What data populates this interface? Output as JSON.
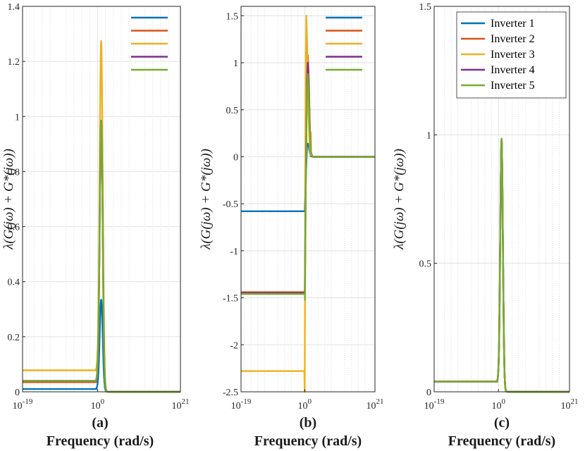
{
  "colors": {
    "inverter_1": "#0072BD",
    "inverter_2": "#D95319",
    "inverter_3": "#EDB120",
    "inverter_4": "#7E2F8E",
    "inverter_5": "#77AC30"
  },
  "chart_data": [
    {
      "type": "line",
      "panel_label": "(a)",
      "xlabel": "Frequency (rad/s)",
      "ylabel": "λ(G(jω) + G*(jω))",
      "xscale": "log",
      "xlim": [
        "1e-19",
        "1e21"
      ],
      "xticks": [
        "10^-19",
        "10^0",
        "10^21"
      ],
      "ylim": [
        0,
        1.4
      ],
      "yticks": [
        "0",
        "0.2",
        "0.4",
        "0.6",
        "0.8",
        "1",
        "1.2",
        "1.4"
      ],
      "grid": true,
      "legend": {
        "placement": "top-right",
        "entries_printed": false
      },
      "series": [
        {
          "color": "#0072BD",
          "low_freq_value": 0.01,
          "peak": {
            "x": "1e1",
            "y": 0.335
          },
          "high_freq_value": 0
        },
        {
          "color": "#D95319",
          "low_freq_value": 0.035,
          "peak": {
            "x": "1e1",
            "y": 0.985
          },
          "high_freq_value": 0
        },
        {
          "color": "#EDB120",
          "low_freq_value": 0.078,
          "peak": {
            "x": "1e1",
            "y": 1.275
          },
          "high_freq_value": 0
        },
        {
          "color": "#7E2F8E",
          "low_freq_value": 0.04,
          "peak": {
            "x": "1e1",
            "y": 0.985
          },
          "high_freq_value": 0
        },
        {
          "color": "#77AC30",
          "low_freq_value": 0.04,
          "peak": {
            "x": "1e1",
            "y": 0.985
          },
          "high_freq_value": 0
        }
      ]
    },
    {
      "type": "line",
      "panel_label": "(b)",
      "xlabel": "Frequency (rad/s)",
      "ylabel": "λ(G(jω) + G*(jω))",
      "xscale": "log",
      "xlim": [
        "1e-19",
        "1e21"
      ],
      "xticks": [
        "10^-19",
        "10^0",
        "10^21"
      ],
      "ylim": [
        -2.5,
        1.6
      ],
      "yticks": [
        "-2.5",
        "-2",
        "-1.5",
        "-1",
        "-0.5",
        "0",
        "0.5",
        "1",
        "1.5"
      ],
      "grid": true,
      "legend": {
        "placement": "top-right",
        "entries_printed": false
      },
      "series": [
        {
          "color": "#0072BD",
          "low_freq_value": -0.58,
          "peak": {
            "x": "1e1",
            "y": 0.14
          },
          "high_freq_value": 0
        },
        {
          "color": "#D95319",
          "low_freq_value": -1.44,
          "peak": {
            "x": "1e1",
            "y": 1.08
          },
          "high_freq_value": 0
        },
        {
          "color": "#EDB120",
          "low_freq_value": -2.28,
          "peak": {
            "x": "1e0.5",
            "y": 1.5
          },
          "high_freq_value": 0
        },
        {
          "color": "#7E2F8E",
          "low_freq_value": -1.45,
          "peak": {
            "x": "1e1",
            "y": 1.0
          },
          "high_freq_value": 0
        },
        {
          "color": "#77AC30",
          "low_freq_value": -1.46,
          "peak": {
            "x": "1e1",
            "y": 0.88
          },
          "high_freq_value": 0
        }
      ]
    },
    {
      "type": "line",
      "panel_label": "(c)",
      "xlabel": "Frequency (rad/s)",
      "ylabel": "λ(G(jω) + G*(jω))",
      "xscale": "log",
      "xlim": [
        "1e-19",
        "1e21"
      ],
      "xticks": [
        "10^-19",
        "10^0",
        "10^21"
      ],
      "ylim": [
        0,
        1.5
      ],
      "yticks": [
        "0",
        "0.5",
        "1",
        "1.5"
      ],
      "grid": true,
      "legend": {
        "placement": "top-right",
        "entries_printed": true,
        "entries": [
          "Inverter 1",
          "Inverter 2",
          "Inverter 3",
          "Inverter 4",
          "Inverter 5"
        ]
      },
      "series": [
        {
          "name": "Inverter 1",
          "color": "#0072BD",
          "low_freq_value": 0.04,
          "peak": {
            "x": "1e1",
            "y": 0.985
          },
          "high_freq_value": 0
        },
        {
          "name": "Inverter 2",
          "color": "#D95319",
          "low_freq_value": 0.04,
          "peak": {
            "x": "1e1",
            "y": 0.985
          },
          "high_freq_value": 0
        },
        {
          "name": "Inverter 3",
          "color": "#EDB120",
          "low_freq_value": 0.04,
          "peak": {
            "x": "1e1",
            "y": 0.985
          },
          "high_freq_value": 0
        },
        {
          "name": "Inverter 4",
          "color": "#7E2F8E",
          "low_freq_value": 0.04,
          "peak": {
            "x": "1e1",
            "y": 0.985
          },
          "high_freq_value": 0
        },
        {
          "name": "Inverter 5",
          "color": "#77AC30",
          "low_freq_value": 0.04,
          "peak": {
            "x": "1e1",
            "y": 0.985
          },
          "high_freq_value": 0
        }
      ]
    }
  ]
}
